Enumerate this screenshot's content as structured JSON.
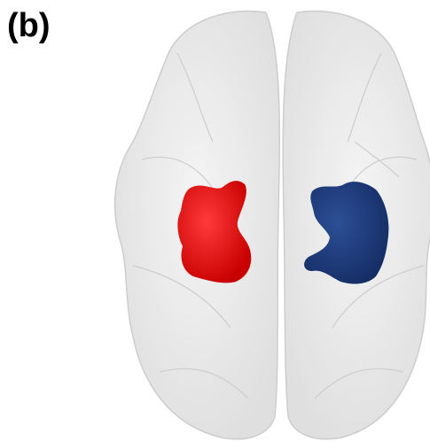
{
  "panel_label": "(b)"
}
